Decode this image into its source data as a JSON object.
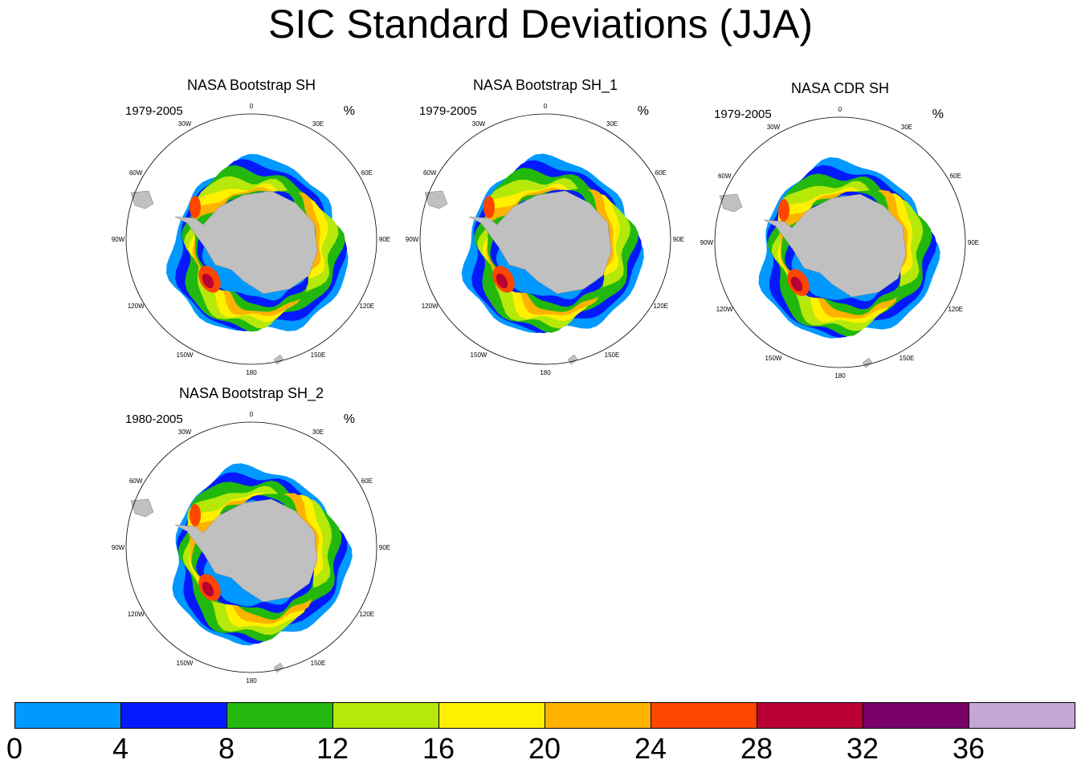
{
  "title": "SIC Standard Deviations (JJA)",
  "panels": [
    {
      "title": "NASA Bootstrap SH",
      "period": "1979-2005",
      "units": "%"
    },
    {
      "title": "NASA Bootstrap SH_1",
      "period": "1979-2005",
      "units": "%"
    },
    {
      "title": "NASA CDR SH",
      "period": "1979-2005",
      "units": "%"
    },
    {
      "title": "NASA Bootstrap SH_2",
      "period": "1980-2005",
      "units": "%"
    }
  ],
  "lon_labels": [
    "0",
    "30E",
    "60E",
    "90E",
    "120E",
    "150E",
    "180",
    "150W",
    "120W",
    "90W",
    "60W",
    "30W"
  ],
  "colorbar": {
    "ticks": [
      "0",
      "4",
      "8",
      "12",
      "16",
      "20",
      "24",
      "28",
      "32",
      "36"
    ],
    "colors": [
      "#0099ff",
      "#0519fd",
      "#22b80e",
      "#b6e80a",
      "#fff000",
      "#ffb300",
      "#ff4600",
      "#b80032",
      "#7a0069",
      "#c3a8d5"
    ]
  },
  "land_color": "#c0c0c0"
}
